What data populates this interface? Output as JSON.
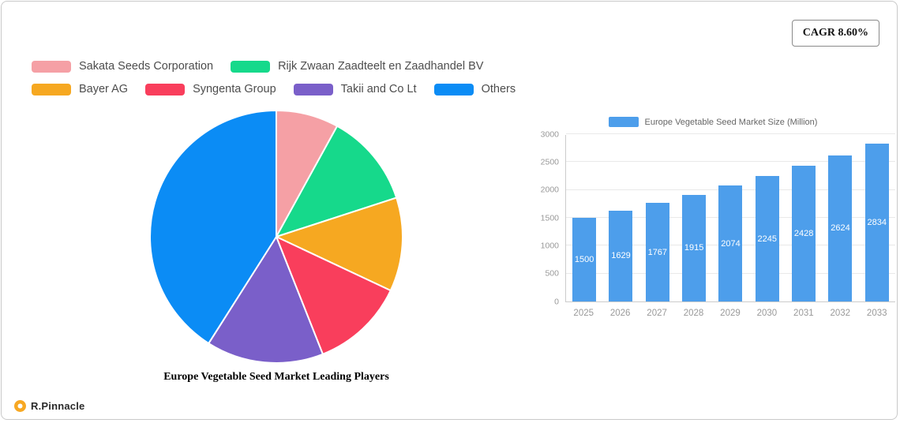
{
  "cagr_badge": "CAGR 8.60%",
  "logo_text": "R.Pinnacle",
  "chart_data": [
    {
      "type": "pie",
      "title": "Europe Vegetable Seed Market Leading Players",
      "labels": [
        "Sakata Seeds Corporation",
        "Rijk Zwaan Zaadteelt en Zaadhandel BV",
        "Bayer AG",
        "Syngenta Group",
        "Takii and Co  Lt",
        "Others"
      ],
      "values": [
        8,
        12,
        12,
        12,
        15,
        41
      ],
      "colors": [
        "#F5A0A5",
        "#16D98B",
        "#F6A821",
        "#F93E5C",
        "#7A5FC9",
        "#0B8CF5"
      ],
      "legend_position": "top-left",
      "slice_start": "top, clockwise"
    },
    {
      "type": "bar",
      "legend": "Europe Vegetable Seed Market Size (Million)",
      "categories": [
        "2025",
        "2026",
        "2027",
        "2028",
        "2029",
        "2030",
        "2031",
        "2032",
        "2033"
      ],
      "values": [
        1500,
        1629,
        1767,
        1915,
        2074,
        2245,
        2428,
        2624,
        2834
      ],
      "ylim": [
        0,
        3000
      ],
      "ytick_step": 500,
      "bar_color": "#4D9EEB",
      "grid": true,
      "legend_position": "top"
    }
  ]
}
